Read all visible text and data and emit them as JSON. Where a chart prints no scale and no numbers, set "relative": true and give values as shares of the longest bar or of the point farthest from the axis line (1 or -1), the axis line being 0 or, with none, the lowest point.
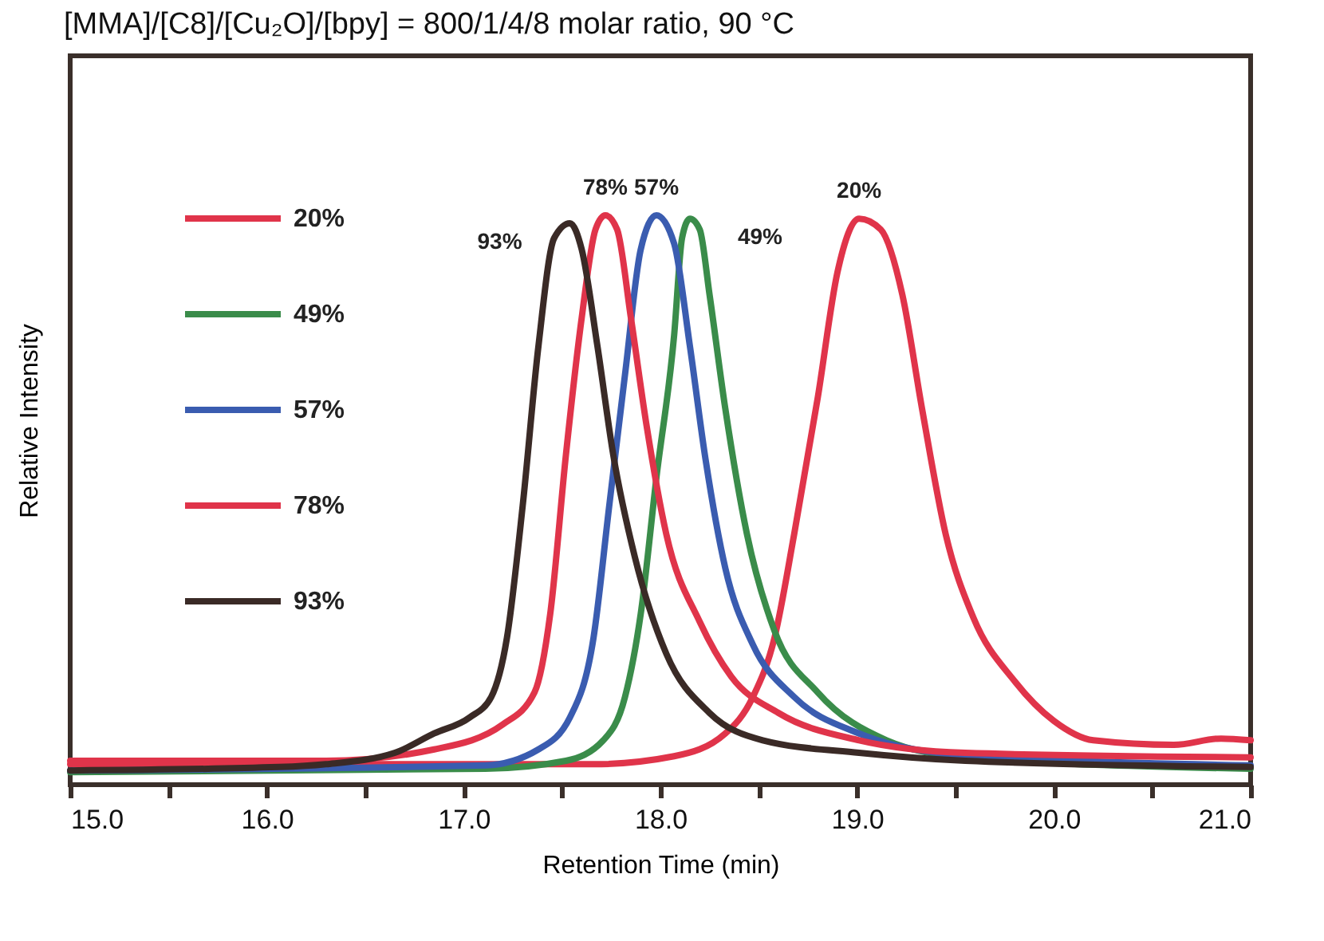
{
  "chart_data": {
    "type": "line",
    "title": "[MMA]/[C8]/[Cu₂O]/[bpy] = 800/1/4/8 molar ratio, 90 °C",
    "xlabel": "Retention Time (min)",
    "ylabel": "Relative Intensity",
    "relative": true,
    "xlim": [
      15,
      21
    ],
    "xticks": [
      {
        "value": 15,
        "label": "15.0"
      },
      {
        "value": 15.5,
        "label": null
      },
      {
        "value": 16,
        "label": "16.0"
      },
      {
        "value": 16.5,
        "label": null
      },
      {
        "value": 17,
        "label": "17.0"
      },
      {
        "value": 17.5,
        "label": null
      },
      {
        "value": 18,
        "label": "18.0"
      },
      {
        "value": 18.5,
        "label": null
      },
      {
        "value": 19,
        "label": "19.0"
      },
      {
        "value": 19.5,
        "label": null
      },
      {
        "value": 20,
        "label": "20.0"
      },
      {
        "value": 20.5,
        "label": null
      },
      {
        "value": 21,
        "label": "21.0"
      }
    ],
    "legend": "top left",
    "series": [
      {
        "name": "20%",
        "color": "#e0344a",
        "x": [
          15.0,
          17.66,
          18.07,
          18.33,
          18.47,
          18.58,
          18.68,
          18.8,
          18.9,
          19.01,
          19.12,
          19.23,
          19.33,
          19.45,
          19.59,
          19.8,
          20.0,
          20.2,
          20.61,
          20.85,
          21.0
        ],
        "values": [
          0.036,
          0.036,
          0.05,
          0.09,
          0.154,
          0.258,
          0.44,
          0.68,
          0.9,
          0.994,
          0.975,
          0.86,
          0.66,
          0.44,
          0.294,
          0.182,
          0.112,
          0.078,
          0.07,
          0.081,
          0.078
        ]
      },
      {
        "name": "49%",
        "color": "#3a8c4a",
        "x": [
          15.0,
          17.11,
          17.52,
          17.71,
          17.82,
          17.9,
          17.98,
          18.07,
          18.11,
          18.15,
          18.2,
          18.25,
          18.33,
          18.44,
          18.58,
          18.8,
          19.15,
          19.55,
          21.0
        ],
        "values": [
          0.022,
          0.028,
          0.042,
          0.078,
          0.154,
          0.3,
          0.54,
          0.79,
          0.96,
          0.994,
          0.975,
          0.86,
          0.66,
          0.44,
          0.27,
          0.162,
          0.078,
          0.048,
          0.028
        ]
      },
      {
        "name": "57%",
        "color": "#3a5cb0",
        "x": [
          15.0,
          17.11,
          17.38,
          17.54,
          17.66,
          17.74,
          17.82,
          17.9,
          17.98,
          18.07,
          18.15,
          18.23,
          18.33,
          18.47,
          18.68,
          19.01,
          19.41,
          20.12,
          21.0
        ],
        "values": [
          0.025,
          0.034,
          0.062,
          0.118,
          0.258,
          0.49,
          0.72,
          0.94,
          1.0,
          0.95,
          0.77,
          0.57,
          0.38,
          0.246,
          0.154,
          0.09,
          0.056,
          0.042,
          0.034
        ]
      },
      {
        "name": "78%",
        "color": "#e0344a",
        "x": [
          15.0,
          16.3,
          16.85,
          17.2,
          17.36,
          17.44,
          17.52,
          17.6,
          17.67,
          17.72,
          17.78,
          17.85,
          17.93,
          18.03,
          18.2,
          18.36,
          18.6,
          19.01,
          19.55,
          21.0
        ],
        "values": [
          0.042,
          0.042,
          0.062,
          0.106,
          0.162,
          0.3,
          0.58,
          0.82,
          0.975,
          1.0,
          0.975,
          0.82,
          0.63,
          0.44,
          0.286,
          0.19,
          0.126,
          0.078,
          0.056,
          0.048
        ]
      },
      {
        "name": "93%",
        "color": "#3a2a26",
        "x": [
          15.0,
          16.06,
          16.3,
          16.65,
          16.85,
          17.03,
          17.14,
          17.22,
          17.3,
          17.38,
          17.46,
          17.54,
          17.6,
          17.68,
          17.76,
          17.87,
          18.03,
          18.25,
          18.52,
          19.01,
          19.55,
          21.0
        ],
        "values": [
          0.025,
          0.031,
          0.036,
          0.056,
          0.09,
          0.118,
          0.154,
          0.258,
          0.49,
          0.77,
          0.96,
          0.986,
          0.94,
          0.77,
          0.58,
          0.4,
          0.23,
          0.126,
          0.078,
          0.056,
          0.042,
          0.031
        ]
      }
    ],
    "annotations": [
      {
        "text": "93%",
        "x": 17.54,
        "y": 0.986
      },
      {
        "text": "78%",
        "x": 17.72,
        "y": 1.0
      },
      {
        "text": "57%",
        "x": 17.98,
        "y": 1.0
      },
      {
        "text": "49%",
        "x": 18.15,
        "y": 0.994
      },
      {
        "text": "20%",
        "x": 19.01,
        "y": 0.994
      }
    ]
  }
}
